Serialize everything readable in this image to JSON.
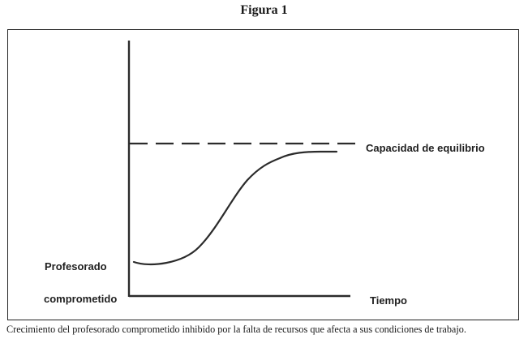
{
  "figure": {
    "title": "Figura 1",
    "caption": "Crecimiento del profesorado comprometido inhibido por la falta de recursos que afecta a sus condiciones de trabajo."
  },
  "diagram": {
    "y_label_line1": "Profesorado",
    "y_label_line2": "comprometido",
    "x_label": "Tiempo",
    "equilibrium_label": "Capacidad de equilibrio"
  },
  "colors": {
    "ink": "#2b2b2b",
    "frame": "#222222"
  }
}
